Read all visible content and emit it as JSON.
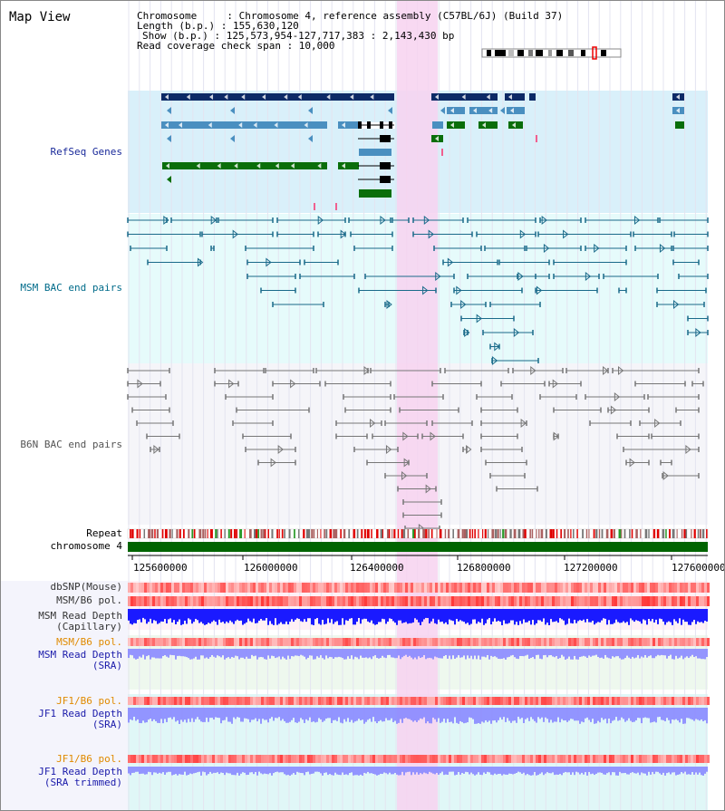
{
  "view": {
    "title": "Map View",
    "chromosome_line": "Chromosome     : Chromosome 4, reference assembly (C57BL/6J) (Build 37)",
    "length_line": "Length (b.p.) : 155,630,120",
    "show_line": "Show (b.p.) : 125,573,954-127,717,383 : 2,143,430 bp",
    "coverage_line": "Read coverage check span : 10,000"
  },
  "tracks": {
    "refseq": {
      "label": "RefSeq Genes",
      "color": "#1a2a9a",
      "bg": "#d9f0fa"
    },
    "msm_bac": {
      "label": "MSM BAC end pairs",
      "color": "#006b8a",
      "bg": "#e6fbfb"
    },
    "b6n_bac": {
      "label": "B6N BAC end pairs",
      "color": "#555555",
      "bg": "#f5f5f9"
    },
    "repeat": {
      "label": "Repeat"
    },
    "chromosome": {
      "label": "chromosome 4"
    },
    "dbsnp": {
      "label": "dbSNP(Mouse)"
    },
    "msm_b6_pol": {
      "label": "MSM/B6 pol."
    },
    "msm_depth_cap": {
      "label": "MSM Read Depth\n(Capillary)"
    },
    "msm_b6_pol2": {
      "label": "MSM/B6 pol.",
      "color": "#e08a00"
    },
    "msm_depth_sra": {
      "label": "MSM Read Depth\n(SRA)",
      "color": "#1a1aaa"
    },
    "jf1_b6_pol": {
      "label": "JF1/B6 pol.",
      "color": "#e08a00"
    },
    "jf1_depth_sra": {
      "label": "JF1 Read Depth\n(SRA)",
      "color": "#1a1aaa"
    },
    "jf1_b6_pol2": {
      "label": "JF1/B6 pol.",
      "color": "#e08a00"
    },
    "jf1_depth_trim": {
      "label": "JF1 Read Depth\n(SRA trimmed)",
      "color": "#1a1aaa"
    }
  },
  "axis": {
    "ticks": [
      "125600000",
      "126000000",
      "126400000",
      "126800000",
      "127200000",
      "127600000"
    ]
  },
  "colors": {
    "highlight": "#f7d2f0",
    "refseq_dark": "#0d2a66",
    "refseq_mid": "#4a8fc0",
    "refseq_green": "#0a6e0a",
    "msm_line": "#1a6a8a",
    "b6n_line": "#777777",
    "chromosome": "#006400",
    "snp": "#ff3b3b",
    "depth_dark": "#1a1aff",
    "depth_light": "#8a8aff"
  }
}
